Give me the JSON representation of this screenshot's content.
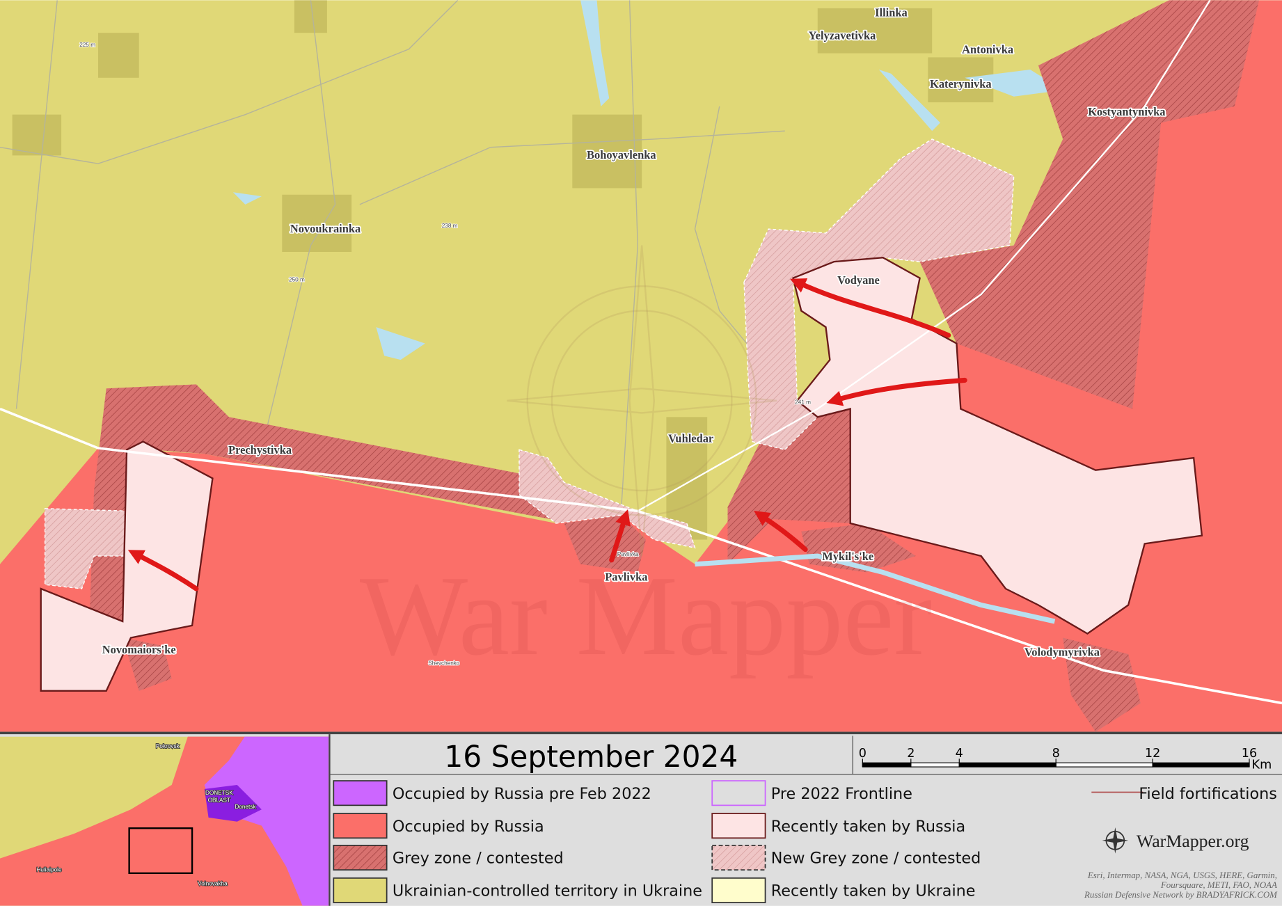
{
  "map": {
    "places": [
      "Illinka",
      "Yelyzavetivka",
      "Antonivka",
      "Katerynivka",
      "Kostyantynivka",
      "Bohoyavlenka",
      "Novoukrainka",
      "Vodyane",
      "Vuhledar",
      "Prechystivka",
      "Pavlivka",
      "Mykil's'ke",
      "Novomaiors'ke",
      "Volodymyrivka"
    ],
    "elevations": [
      "225 m",
      "238 m",
      "250 m",
      "241 m"
    ],
    "minor_labels": [
      "Shevchenko",
      "Pavlivka"
    ],
    "watermark": "War Mapper"
  },
  "inset": {
    "labels": [
      "Pokrovsk",
      "DONETSK",
      "OBLAST",
      "Donetsk",
      "Huliaipole",
      "Volnovakha"
    ]
  },
  "panel": {
    "date": "16 September 2024",
    "scale": {
      "ticks": [
        0,
        2,
        4,
        8,
        12,
        16
      ],
      "unit": "Km"
    },
    "legend": [
      "Occupied by Russia pre Feb 2022",
      "Occupied by Russia",
      "Grey zone / contested",
      "Ukrainian-controlled territory in Ukraine",
      "Pre 2022 Frontline",
      "Recently taken by Russia",
      "New Grey zone / contested",
      "Recently taken by Ukraine",
      "Field fortifications"
    ],
    "brand": "WarMapper.org",
    "attribution": [
      "Esri, Intermap, NASA, NGA, USGS, HERE, Garmin,",
      "Foursquare, METI, FAO, NOAA",
      "Russian Defensive Network by BRADYAFRICK.COM"
    ]
  }
}
